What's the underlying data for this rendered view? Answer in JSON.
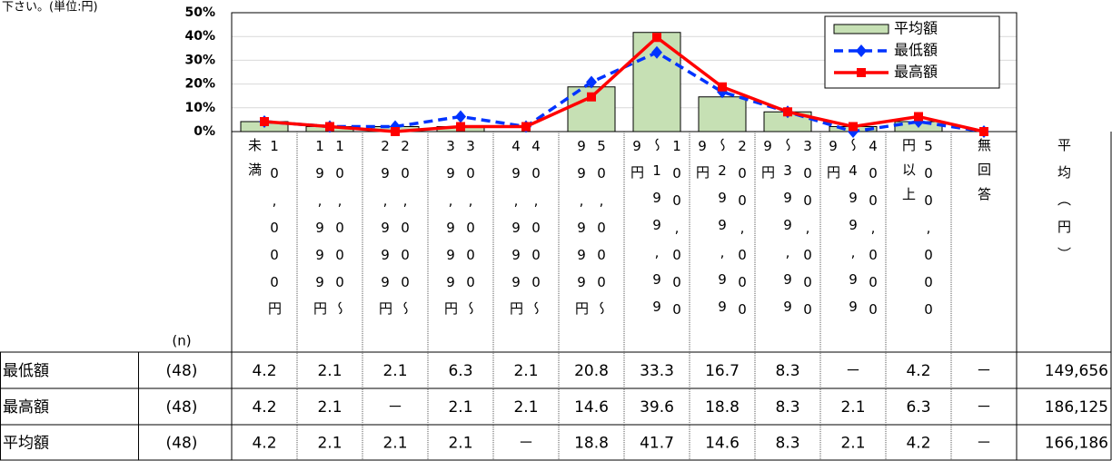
{
  "header": {
    "note": "下さい。(単位:円)"
  },
  "chart_data": {
    "type": "bar",
    "categories": [
      "10,000円未満",
      "10,000～19,999円",
      "20,000～29,999円",
      "30,000～39,999円",
      "40,000～49,999円",
      "50,000～99,999円",
      "100,000～199,999円",
      "200,000～299,999円",
      "300,000～399,999円",
      "400,000～499,999円",
      "500,000円以上",
      "無回答"
    ],
    "ylim": [
      0,
      50
    ],
    "yticks": [
      {
        "value": 0,
        "label": "0%"
      },
      {
        "value": 10,
        "label": "10%"
      },
      {
        "value": 20,
        "label": "20%"
      },
      {
        "value": 30,
        "label": "30%"
      },
      {
        "value": 40,
        "label": "40%"
      },
      {
        "value": 50,
        "label": "50%"
      }
    ],
    "grid": true,
    "legend": "upper right",
    "series": [
      {
        "name": "最低額",
        "type": "line",
        "color": "#0033ff",
        "dashed": true,
        "marker": "diamond",
        "values": [
          4.2,
          2.1,
          2.1,
          6.3,
          2.1,
          20.8,
          33.3,
          16.7,
          8.3,
          0,
          4.2,
          0
        ],
        "value_labels": [
          "4.2",
          "2.1",
          "2.1",
          "6.3",
          "2.1",
          "20.8",
          "33.3",
          "16.7",
          "8.3",
          "－",
          "4.2",
          "－"
        ],
        "n": "(48)",
        "average": "149,656"
      },
      {
        "name": "最高額",
        "type": "line",
        "color": "#ff0000",
        "dashed": false,
        "marker": "square",
        "values": [
          4.2,
          2.1,
          0,
          2.1,
          2.1,
          14.6,
          39.6,
          18.8,
          8.3,
          2.1,
          6.3,
          0
        ],
        "value_labels": [
          "4.2",
          "2.1",
          "－",
          "2.1",
          "2.1",
          "14.6",
          "39.6",
          "18.8",
          "8.3",
          "2.1",
          "6.3",
          "－"
        ],
        "n": "(48)",
        "average": "186,125"
      },
      {
        "name": "平均額",
        "type": "bar",
        "color": "#c6e0b4",
        "values": [
          4.2,
          2.1,
          2.1,
          2.1,
          0,
          18.8,
          41.7,
          14.6,
          8.3,
          2.1,
          4.2,
          0
        ],
        "value_labels": [
          "4.2",
          "2.1",
          "2.1",
          "2.1",
          "－",
          "18.8",
          "41.7",
          "14.6",
          "8.3",
          "2.1",
          "4.2",
          "－"
        ],
        "n": "(48)",
        "average": "166,186"
      }
    ],
    "n_label": "(n)",
    "average_header": "平均（円）"
  }
}
